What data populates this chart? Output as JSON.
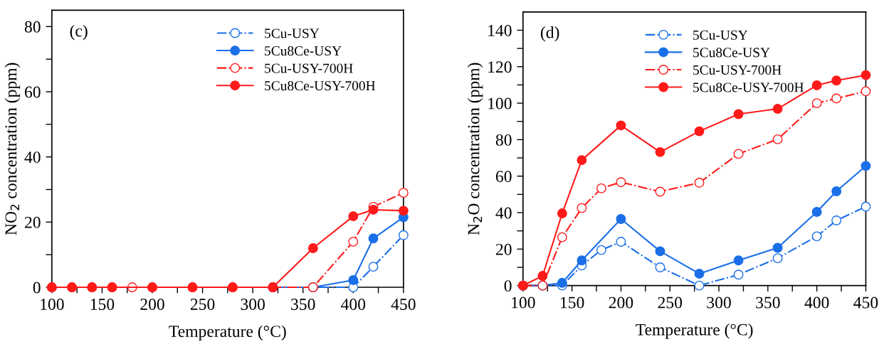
{
  "chart_data": [
    {
      "type": "line",
      "xlabel": "Temperature (°C)",
      "ylabel": "NO$_{2}$ concentration (ppm)",
      "annotations": [
        "(c)"
      ],
      "xlim": [
        100,
        450
      ],
      "xticks": [
        100,
        {
          "value": 125,
          "label": null
        },
        150,
        {
          "value": 175,
          "label": null
        },
        200,
        {
          "value": 225,
          "label": null
        },
        250,
        {
          "value": 275,
          "label": null
        },
        300,
        {
          "value": 325,
          "label": null
        },
        350,
        {
          "value": 375,
          "label": null
        },
        400,
        {
          "value": 425,
          "label": null
        },
        450
      ],
      "ylim": [
        0,
        85
      ],
      "yticks": [
        0,
        {
          "value": 10,
          "label": null
        },
        20,
        {
          "value": 30,
          "label": null
        },
        40,
        {
          "value": 50,
          "label": null
        },
        60,
        {
          "value": 70,
          "label": null
        },
        80
      ],
      "legend": "top right",
      "grid": false,
      "marker": "circle",
      "x": [
        100,
        120,
        140,
        160,
        180,
        200,
        240,
        280,
        320,
        360,
        400,
        420,
        450
      ],
      "series": [
        {
          "name": "5Cu-USY",
          "color": "#1a6fe8",
          "line_style": "dashdot",
          "values": [
            null,
            null,
            null,
            null,
            null,
            null,
            null,
            null,
            0,
            0,
            0,
            6.3,
            16
          ]
        },
        {
          "name": "5Cu8Ce-USY",
          "color": "#1a6fe8",
          "line_style": "solid",
          "values": [
            null,
            null,
            null,
            null,
            null,
            null,
            null,
            null,
            0,
            0,
            2.2,
            15,
            21.5
          ]
        },
        {
          "name": "5Cu-USY-700H",
          "color": "#ff1a1a",
          "line_style": "dashdot",
          "values": [
            0,
            0,
            0,
            0,
            0,
            0,
            0,
            0,
            0,
            0,
            14,
            24.7,
            29
          ]
        },
        {
          "name": "5Cu8Ce-USY-700H",
          "color": "#ff1a1a",
          "line_style": "solid",
          "values": [
            0,
            0,
            0,
            0,
            null,
            0,
            0,
            0,
            0,
            12,
            21.8,
            23.8,
            23.5
          ]
        }
      ]
    },
    {
      "type": "line",
      "xlabel": "Temperature (°C)",
      "ylabel": "N$_{2}$O concentration (ppm)",
      "annotations": [
        "(d)"
      ],
      "xlim": [
        100,
        450
      ],
      "xticks": [
        100,
        {
          "value": 125,
          "label": null
        },
        150,
        {
          "value": 175,
          "label": null
        },
        200,
        {
          "value": 225,
          "label": null
        },
        250,
        {
          "value": 275,
          "label": null
        },
        300,
        {
          "value": 325,
          "label": null
        },
        350,
        {
          "value": 375,
          "label": null
        },
        400,
        {
          "value": 425,
          "label": null
        },
        450
      ],
      "ylim": [
        0,
        150
      ],
      "yticks": [
        0,
        {
          "value": 10,
          "label": null
        },
        20,
        {
          "value": 30,
          "label": null
        },
        40,
        {
          "value": 50,
          "label": null
        },
        60,
        {
          "value": 70,
          "label": null
        },
        80,
        {
          "value": 90,
          "label": null
        },
        100,
        {
          "value": 110,
          "label": null
        },
        120,
        {
          "value": 130,
          "label": null
        },
        140
      ],
      "legend": "top right",
      "grid": false,
      "marker": "circle",
      "x": [
        100,
        120,
        140,
        160,
        180,
        200,
        240,
        280,
        320,
        360,
        400,
        420,
        450
      ],
      "series": [
        {
          "name": "5Cu-USY",
          "color": "#1a6fe8",
          "line_style": "dashdot",
          "values": [
            0,
            0,
            0,
            11,
            19.5,
            24,
            10,
            0,
            6,
            15,
            27,
            35.7,
            43.3
          ]
        },
        {
          "name": "5Cu8Ce-USY",
          "color": "#1a6fe8",
          "line_style": "solid",
          "values": [
            0,
            0,
            1.5,
            13.8,
            null,
            36.5,
            18.8,
            6.5,
            13.8,
            20.7,
            40.4,
            51.7,
            65.6
          ]
        },
        {
          "name": "5Cu-USY-700H",
          "color": "#ff1a1a",
          "line_style": "dashdot",
          "values": [
            0,
            0,
            26.5,
            42.5,
            53.3,
            56.7,
            51.5,
            56.4,
            72.2,
            80.2,
            100,
            102.6,
            106.5
          ]
        },
        {
          "name": "5Cu8Ce-USY-700H",
          "color": "#ff1a1a",
          "line_style": "solid",
          "values": [
            0,
            5.3,
            39.6,
            68.8,
            null,
            87.8,
            73.2,
            84.6,
            94,
            96.9,
            109.8,
            112.4,
            115.4
          ]
        }
      ]
    }
  ]
}
